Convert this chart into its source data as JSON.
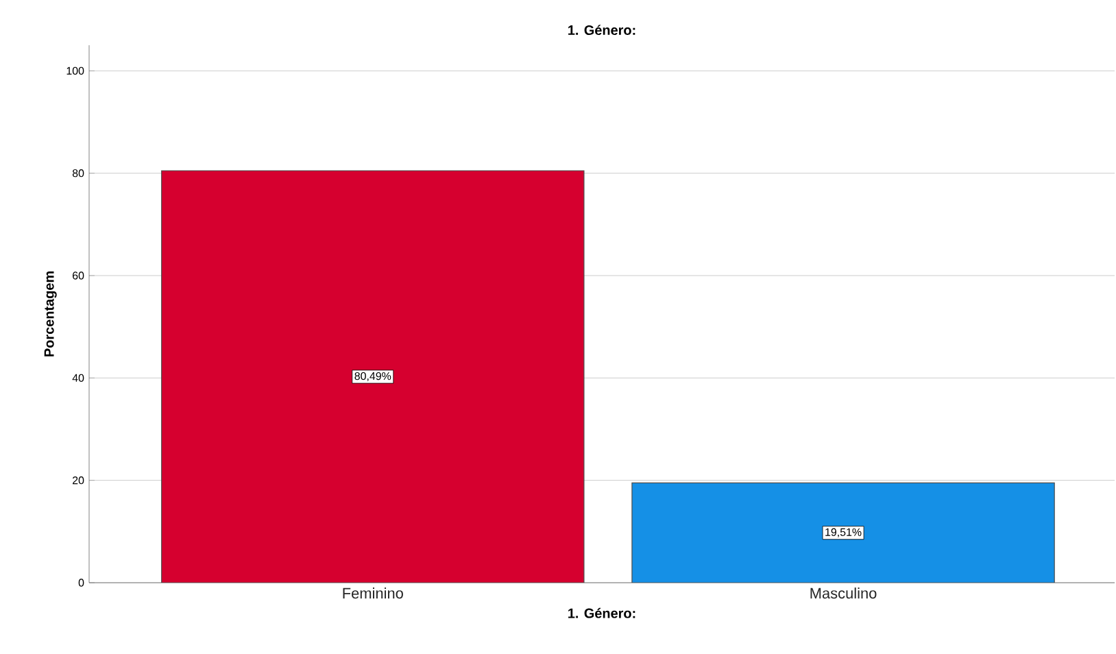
{
  "chart_data": {
    "type": "bar",
    "title": "1. Género:",
    "xlabel": "1. Género:",
    "ylabel": "Porcentagem",
    "categories": [
      "Feminino",
      "Masculino"
    ],
    "values": [
      80.49,
      19.51
    ],
    "colors": [
      "#d6002f",
      "#1590e6"
    ],
    "value_labels": [
      "80,49%",
      "19,51%"
    ],
    "ylim": [
      0,
      105
    ],
    "yticks": [
      0,
      20,
      40,
      60,
      80,
      100
    ],
    "grid": "y"
  }
}
